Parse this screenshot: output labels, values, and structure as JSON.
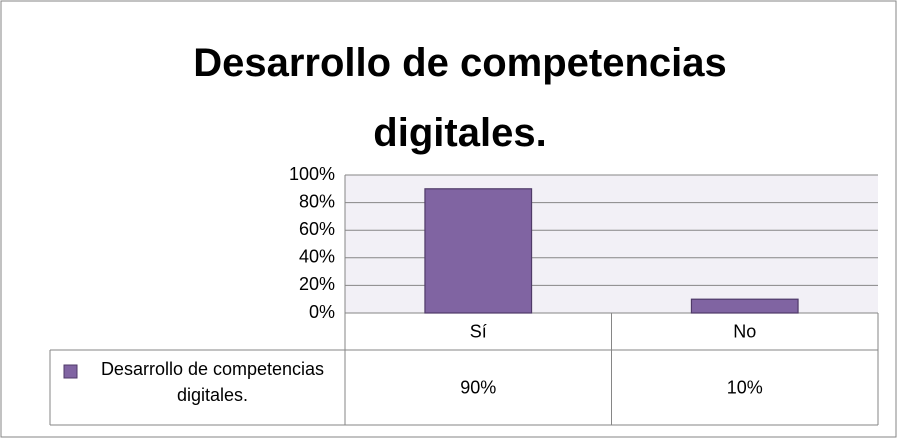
{
  "chart_data": {
    "type": "bar",
    "title": "Desarrollo de competencias digitales.",
    "categories": [
      "Sí",
      "No"
    ],
    "series": [
      {
        "name": "Desarrollo de competencias digitales.",
        "color": "#8064a2",
        "values": [
          90,
          10
        ],
        "value_labels": [
          "90%",
          "10%"
        ]
      }
    ],
    "ylim": [
      0,
      100
    ],
    "yticks": [
      {
        "value": 0,
        "label": "0%"
      },
      {
        "value": 20,
        "label": "20%"
      },
      {
        "value": 40,
        "label": "40%"
      },
      {
        "value": 60,
        "label": "60%"
      },
      {
        "value": 80,
        "label": "80%"
      },
      {
        "value": 100,
        "label": "100%"
      }
    ],
    "grid": true
  }
}
